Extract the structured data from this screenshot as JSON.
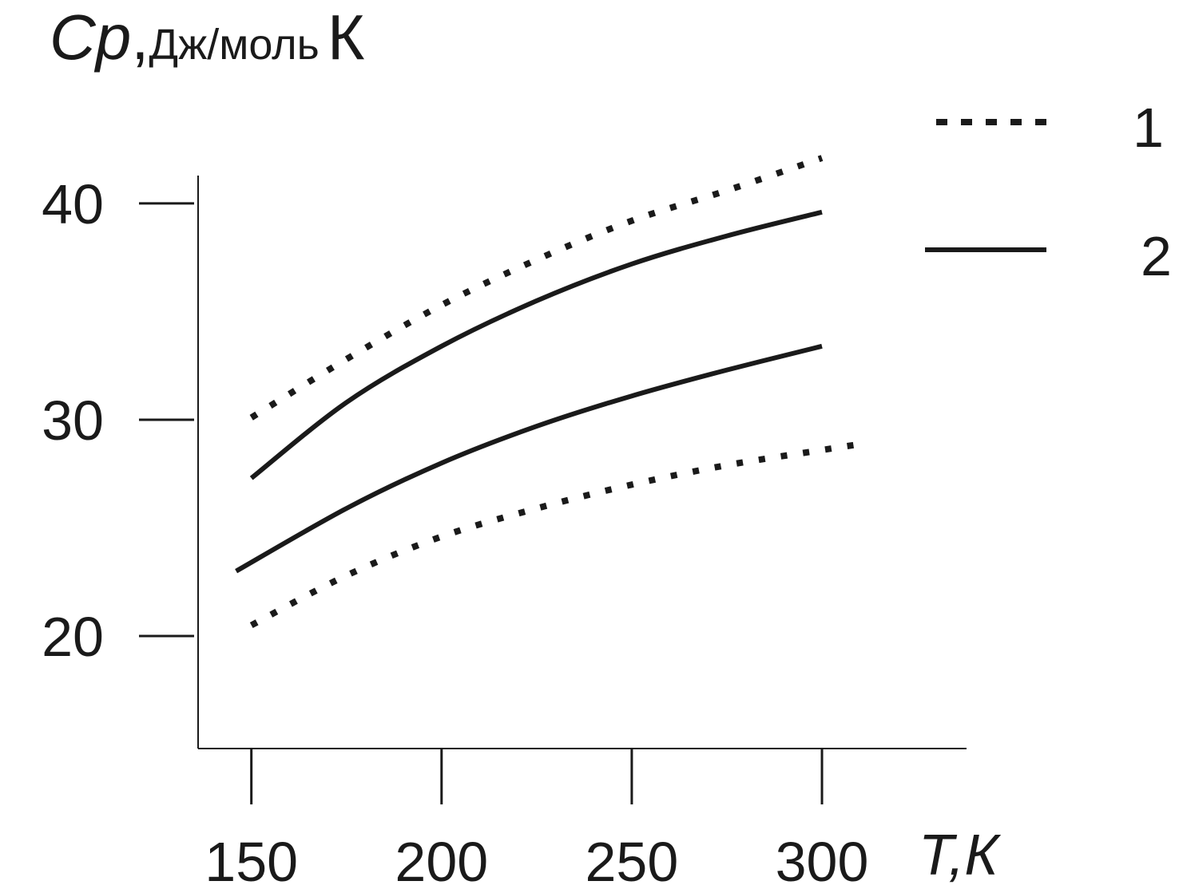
{
  "chart_data": {
    "type": "line",
    "title": "",
    "ylabel": {
      "symbol": "Cp",
      "separator": ",",
      "units": "Дж/моль",
      "unit_letter": "К"
    },
    "xlabel": "T,К",
    "xlim": [
      136,
      338
    ],
    "ylim": [
      14.8,
      42.1
    ],
    "x_ticks": [
      150,
      200,
      250,
      300
    ],
    "y_ticks": [
      20,
      30,
      40
    ],
    "grid": false,
    "legend": {
      "placement": "top-right",
      "items": [
        {
          "label": "1",
          "style": "dotted"
        },
        {
          "label": "2",
          "style": "solid"
        }
      ]
    },
    "series": [
      {
        "legend_label": "1",
        "style": "dotted",
        "x": [
          150,
          175,
          200,
          225,
          250,
          275,
          300
        ],
        "y": [
          30.1,
          32.8,
          35.3,
          37.4,
          39.2,
          40.6,
          42.1
        ]
      },
      {
        "legend_label": "2",
        "style": "solid",
        "x": [
          150,
          175,
          200,
          225,
          250,
          275,
          300
        ],
        "y": [
          27.3,
          30.8,
          33.4,
          35.5,
          37.2,
          38.5,
          39.6
        ]
      },
      {
        "legend_label": "2",
        "style": "solid",
        "x": [
          146,
          175,
          200,
          225,
          250,
          275,
          300
        ],
        "y": [
          23.0,
          25.9,
          28.0,
          29.7,
          31.1,
          32.3,
          33.4
        ]
      },
      {
        "legend_label": "1",
        "style": "dotted",
        "x": [
          150,
          175,
          200,
          225,
          250,
          275,
          300,
          311
        ],
        "y": [
          20.5,
          22.8,
          24.6,
          25.9,
          27.0,
          27.9,
          28.6,
          28.9
        ]
      }
    ],
    "colors": {
      "line": "#1a1a1a",
      "axis": "#1a1a1a"
    }
  }
}
